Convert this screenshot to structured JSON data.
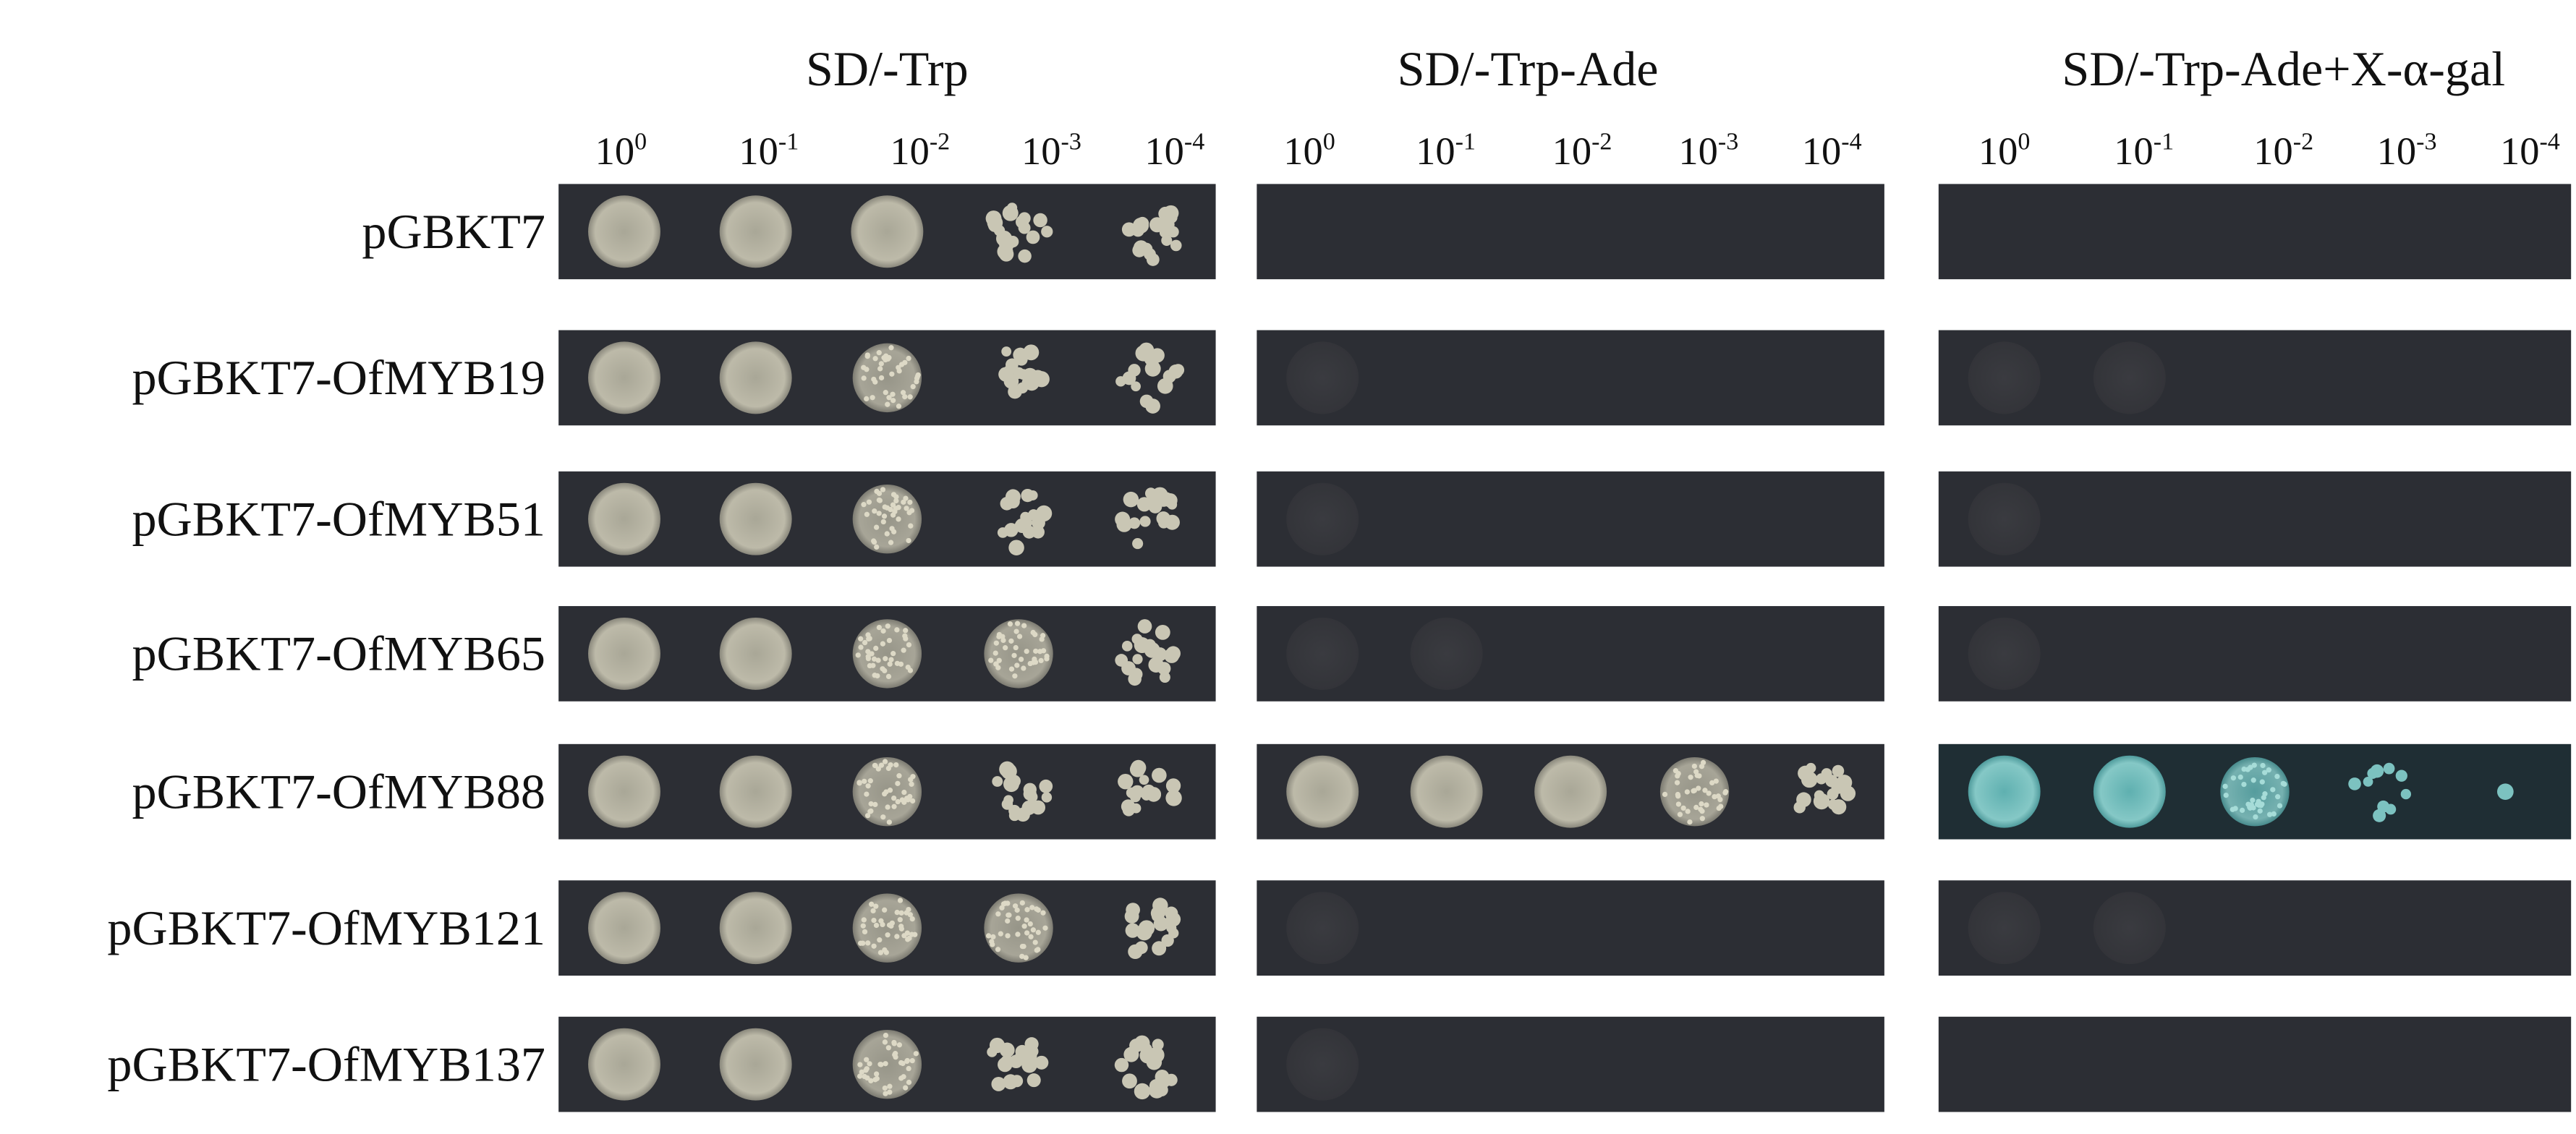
{
  "panels": [
    {
      "title": "SD/-Trp"
    },
    {
      "title": "SD/-Trp-Ade"
    },
    {
      "title": "SD/-Trp-Ade+X-α-gal"
    }
  ],
  "dilutions": [
    {
      "base": "10",
      "exponent": "0"
    },
    {
      "base": "10",
      "exponent": "-1"
    },
    {
      "base": "10",
      "exponent": "-2"
    },
    {
      "base": "10",
      "exponent": "-3"
    },
    {
      "base": "10",
      "exponent": "-4"
    }
  ],
  "rows": [
    "pGBKT7",
    "pGBKT7-OfMYB19",
    "pGBKT7-OfMYB51",
    "pGBKT7-OfMYB65",
    "pGBKT7-OfMYB88",
    "pGBKT7-OfMYB121",
    "pGBKT7-OfMYB137"
  ]
}
